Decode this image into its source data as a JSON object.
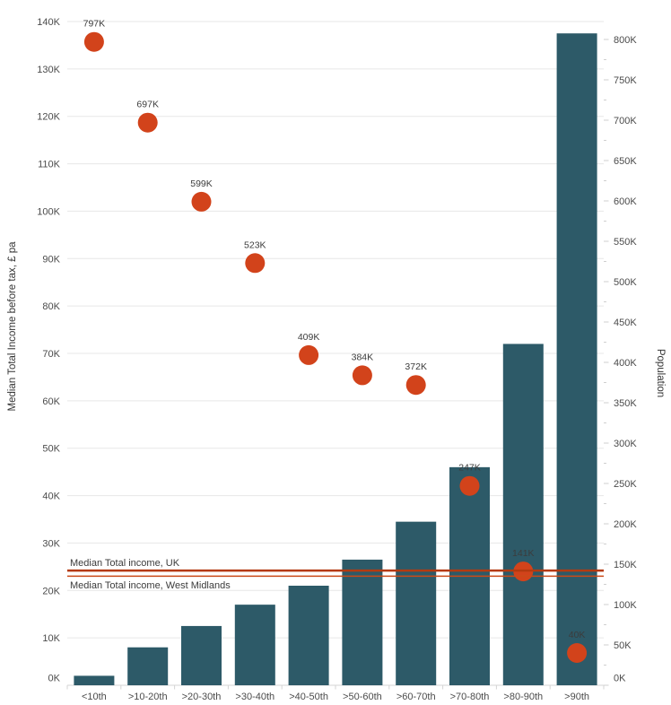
{
  "chart_data": {
    "type": "bar",
    "subtype": "dual-axis combo: bars (left axis) + scatter dots (right axis)",
    "categories": [
      "<10th",
      ">10-20th",
      ">20-30th",
      ">30-40th",
      ">40-50th",
      ">50-60th",
      ">60-70th",
      ">70-80th",
      ">80-90th",
      ">90th"
    ],
    "series": [
      {
        "name": "Median Total Income before tax",
        "type": "bar",
        "axis": "left",
        "unit": "K GBP pa",
        "color": "#2d5a68",
        "values": [
          2,
          8,
          12.5,
          17,
          21,
          26.5,
          34.5,
          46,
          72,
          137.5
        ]
      },
      {
        "name": "Population",
        "type": "scatter",
        "axis": "right",
        "unit": "K people",
        "color": "#d2431b",
        "values": [
          797,
          697,
          599,
          523,
          409,
          384,
          372,
          247,
          141,
          40
        ],
        "point_labels": [
          "797K",
          "697K",
          "599K",
          "523K",
          "409K",
          "384K",
          "372K",
          "247K",
          "141K",
          "40K"
        ]
      }
    ],
    "left_axis": {
      "title": "Median Total Income before tax, £ pa",
      "min": 0,
      "max": 140,
      "step": 10,
      "suffix": "K"
    },
    "right_axis": {
      "title": "Population",
      "min": 0,
      "max": 800,
      "step": 50,
      "minor_step": 25,
      "suffix": "K"
    },
    "reference_lines": [
      {
        "label": "Median Total income, UK",
        "axis": "left",
        "value": 24.2,
        "color": "#b43a10",
        "stroke_width": 2.5,
        "label_position": "above"
      },
      {
        "label": "Median Total income, West Midlands",
        "axis": "left",
        "value": 23.0,
        "color": "#ca4a18",
        "stroke_width": 1.5,
        "label_position": "below"
      }
    ],
    "grid": {
      "horizontal": true,
      "follows": "left_axis",
      "color": "#e7e7e7",
      "baseline_color": "#d4d4d4"
    },
    "legend": "none",
    "title": ""
  },
  "text_colors": {
    "tick_label": "#4b4b4b",
    "point_label": "#3c3c3c",
    "reference_label": "#3b3b3b"
  }
}
